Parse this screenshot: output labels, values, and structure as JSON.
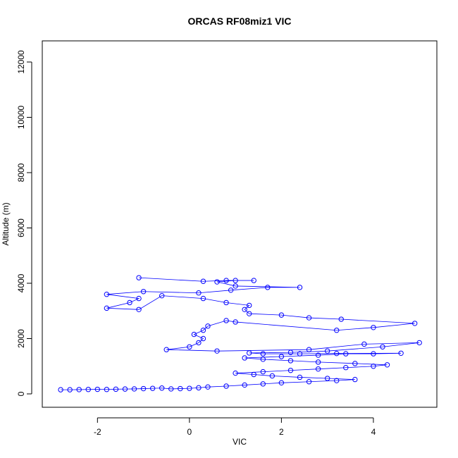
{
  "chart_data": {
    "type": "line",
    "title": "ORCAS RF08miz1 VIC",
    "x_label": "VIC",
    "y_label": "Altitude (m)",
    "color": "#0000ff",
    "markers": true,
    "xlim": [
      -3.2,
      5.38
    ],
    "ylim": [
      -484,
      12764
    ],
    "xticks": [
      -2,
      0,
      2,
      4
    ],
    "yticks": [
      0,
      2000,
      4000,
      6000,
      8000,
      10000,
      12000
    ],
    "x": [
      -2.8,
      -2.6,
      -2.4,
      -2.2,
      -2.0,
      -1.8,
      -1.6,
      -1.4,
      -1.2,
      -1.0,
      -0.8,
      -0.6,
      -0.4,
      -0.2,
      0.0,
      0.2,
      0.4,
      0.8,
      1.2,
      1.6,
      2.0,
      2.6,
      3.2,
      3.6,
      3.0,
      2.4,
      1.8,
      1.4,
      1.0,
      1.6,
      2.2,
      2.8,
      3.4,
      4.0,
      4.3,
      3.6,
      2.8,
      2.2,
      1.6,
      1.2,
      2.0,
      2.8,
      3.4,
      4.0,
      4.6,
      3.2,
      2.4,
      1.6,
      1.3,
      2.2,
      3.0,
      4.2,
      5.0,
      3.8,
      2.6,
      0.6,
      -0.5,
      0.0,
      0.2,
      0.3,
      0.1,
      0.3,
      0.4,
      0.8,
      1.0,
      3.2,
      4.0,
      4.9,
      3.3,
      2.6,
      2.0,
      1.3,
      1.2,
      1.3,
      0.8,
      0.3,
      -0.6,
      -1.1,
      -1.8,
      -1.3,
      -1.1,
      -1.8,
      -1.0,
      0.2,
      0.9,
      1.7,
      2.4,
      1.0,
      0.6,
      1.0,
      1.4,
      0.8,
      0.3,
      -1.1
    ],
    "values": [
      150,
      150,
      155,
      160,
      165,
      160,
      170,
      175,
      180,
      190,
      200,
      210,
      180,
      190,
      200,
      220,
      250,
      280,
      320,
      360,
      400,
      440,
      480,
      520,
      560,
      600,
      650,
      700,
      750,
      800,
      850,
      900,
      950,
      1000,
      1050,
      1100,
      1150,
      1200,
      1250,
      1300,
      1350,
      1400,
      1450,
      1450,
      1470,
      1460,
      1450,
      1450,
      1480,
      1500,
      1550,
      1700,
      1850,
      1800,
      1600,
      1550,
      1600,
      1700,
      1850,
      2000,
      2150,
      2300,
      2450,
      2650,
      2600,
      2300,
      2400,
      2550,
      2700,
      2750,
      2850,
      2900,
      3050,
      3200,
      3300,
      3450,
      3550,
      3050,
      3100,
      3300,
      3450,
      3600,
      3700,
      3650,
      3750,
      3850,
      3850,
      3900,
      4050,
      4100,
      4100,
      4100,
      4070,
      4200
    ]
  }
}
